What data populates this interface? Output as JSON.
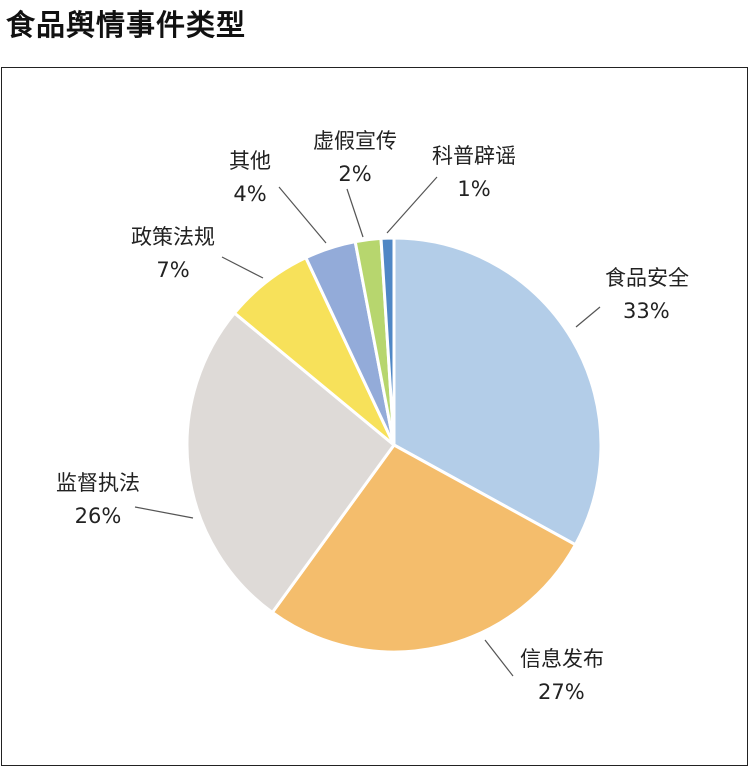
{
  "page": {
    "title": "食品舆情事件类型"
  },
  "chart_data": {
    "type": "pie",
    "title": "",
    "start_angle_deg": 0,
    "direction": "clockwise",
    "slices": [
      {
        "name": "食品安全",
        "value": 33,
        "label": "33%",
        "color": "#b3cde8"
      },
      {
        "name": "信息发布",
        "value": 27,
        "label": "27%",
        "color": "#f4bd6c"
      },
      {
        "name": "监督执法",
        "value": 26,
        "label": "26%",
        "color": "#dedad7"
      },
      {
        "name": "政策法规",
        "value": 7,
        "label": "7%",
        "color": "#f7e15a"
      },
      {
        "name": "其他",
        "value": 4,
        "label": "4%",
        "color": "#93abd9"
      },
      {
        "name": "虚假宣传",
        "value": 2,
        "label": "2%",
        "color": "#b7d66e"
      },
      {
        "name": "科普辟谣",
        "value": 1,
        "label": "1%",
        "color": "#4f87c5"
      }
    ]
  }
}
